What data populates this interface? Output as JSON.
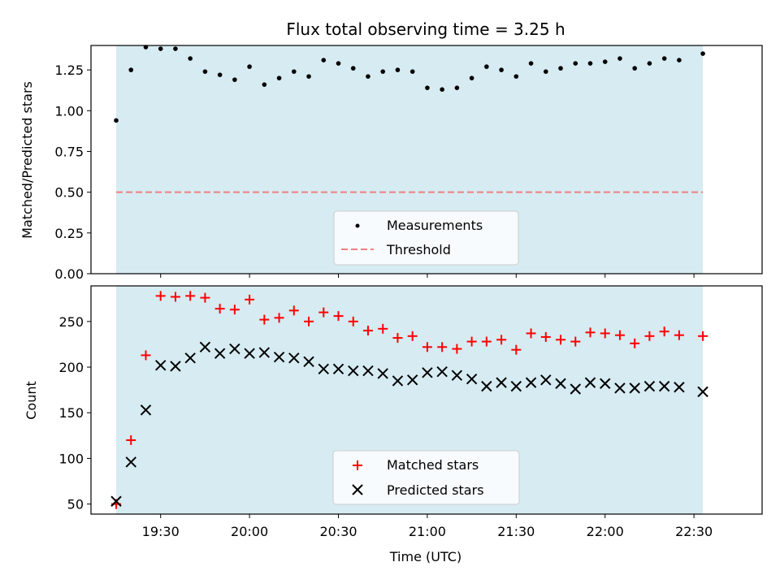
{
  "chart_data": {
    "title": "Flux total observing time = 3.25 h",
    "xlabel": "Time (UTC)",
    "x_tick_labels": [
      "19:30",
      "20:00",
      "20:30",
      "21:00",
      "21:30",
      "22:00",
      "22:30"
    ],
    "x_tick_minutes": [
      1170,
      1200,
      1230,
      1260,
      1290,
      1320,
      1350
    ],
    "xlim_minutes": [
      1146.5,
      1373
    ],
    "observing_window_minutes": [
      1155,
      1353
    ],
    "observing_window_color": "#add8e6",
    "panels": [
      {
        "type": "scatter",
        "ylabel": "Matched/Predicted stars",
        "ylim": [
          0,
          1.4
        ],
        "y_ticks": [
          0,
          0.25,
          0.5,
          0.75,
          1.0,
          1.25
        ],
        "y_tick_labels": [
          "0.00",
          "0.25",
          "0.50",
          "0.75",
          "1.00",
          "1.25"
        ],
        "threshold": {
          "value": 0.5,
          "label": "Threshold",
          "color": "#f08080",
          "style": "dashed"
        },
        "series": [
          {
            "name": "Measurements",
            "marker": "dot",
            "color": "#000000",
            "values": [
              0.94,
              1.25,
              1.39,
              1.38,
              1.38,
              1.32,
              1.24,
              1.22,
              1.19,
              1.27,
              1.16,
              1.2,
              1.24,
              1.21,
              1.31,
              1.29,
              1.26,
              1.21,
              1.24,
              1.25,
              1.24,
              1.14,
              1.13,
              1.14,
              1.2,
              1.27,
              1.25,
              1.21,
              1.29,
              1.24,
              1.26,
              1.29,
              1.29,
              1.3,
              1.32,
              1.26,
              1.29,
              1.32,
              1.31,
              1.35
            ]
          }
        ],
        "legend_position": "lower center"
      },
      {
        "type": "scatter",
        "ylabel": "Count",
        "ylim": [
          39,
          289
        ],
        "y_ticks": [
          50,
          100,
          150,
          200,
          250
        ],
        "y_tick_labels": [
          "50",
          "100",
          "150",
          "200",
          "250"
        ],
        "series": [
          {
            "name": "Matched stars",
            "marker": "plus",
            "color": "#ff0000",
            "values": [
              50,
              120,
              213,
              278,
              277,
              278,
              276,
              264,
              263,
              274,
              252,
              254,
              262,
              250,
              260,
              256,
              250,
              240,
              242,
              232,
              234,
              222,
              222,
              220,
              228,
              228,
              230,
              219,
              237,
              233,
              230,
              228,
              238,
              237,
              235,
              226,
              234,
              239,
              235,
              234
            ]
          },
          {
            "name": "Predicted stars",
            "marker": "x",
            "color": "#000000",
            "values": [
              53,
              96,
              153,
              202,
              201,
              210,
              222,
              215,
              220,
              215,
              216,
              211,
              210,
              206,
              198,
              198,
              196,
              196,
              193,
              185,
              186,
              194,
              195,
              191,
              187,
              179,
              183,
              179,
              183,
              186,
              182,
              176,
              183,
              182,
              177,
              177,
              179,
              179,
              178,
              173
            ]
          }
        ],
        "legend_position": "lower center"
      }
    ],
    "x_minutes": [
      1155,
      1160,
      1165,
      1170,
      1175,
      1180,
      1185,
      1190,
      1195,
      1200,
      1205,
      1210,
      1215,
      1220,
      1225,
      1230,
      1235,
      1240,
      1245,
      1250,
      1255,
      1260,
      1265,
      1270,
      1275,
      1280,
      1285,
      1290,
      1295,
      1300,
      1305,
      1310,
      1315,
      1320,
      1325,
      1330,
      1335,
      1340,
      1345,
      1353
    ]
  }
}
